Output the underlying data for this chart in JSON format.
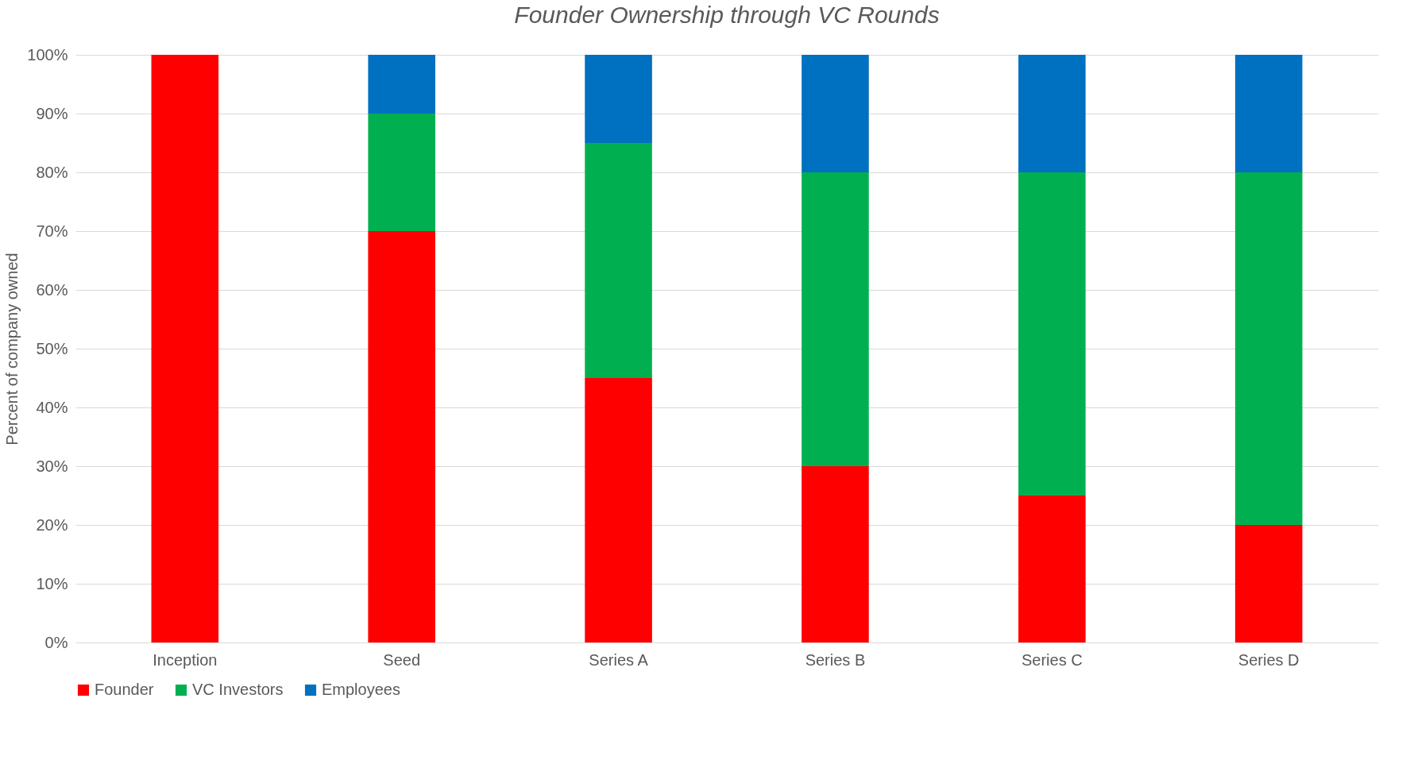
{
  "chart_data": {
    "type": "bar",
    "title": "Founder Ownership through VC Rounds",
    "ylabel": "Percent of company owned",
    "stacked": true,
    "categories": [
      "Inception",
      "Seed",
      "Series A",
      "Series B",
      "Series C",
      "Series D"
    ],
    "series": [
      {
        "name": "Founder",
        "color": "#ff0000",
        "values": [
          100,
          70,
          45,
          30,
          25,
          20
        ]
      },
      {
        "name": "VC Investors",
        "color": "#00b050",
        "values": [
          0,
          20,
          40,
          50,
          55,
          60
        ]
      },
      {
        "name": "Employees",
        "color": "#0070c0",
        "values": [
          0,
          10,
          15,
          20,
          20,
          20
        ]
      }
    ],
    "ylim": [
      0,
      100
    ],
    "yticks": [
      {
        "value": 0,
        "label": "0%"
      },
      {
        "value": 10,
        "label": "10%"
      },
      {
        "value": 20,
        "label": "20%"
      },
      {
        "value": 30,
        "label": "30%"
      },
      {
        "value": 40,
        "label": "40%"
      },
      {
        "value": 50,
        "label": "50%"
      },
      {
        "value": 60,
        "label": "60%"
      },
      {
        "value": 70,
        "label": "70%"
      },
      {
        "value": 80,
        "label": "80%"
      },
      {
        "value": 90,
        "label": "90%"
      },
      {
        "value": 100,
        "label": "100%"
      }
    ],
    "grid": "y",
    "legend": "bottom"
  }
}
